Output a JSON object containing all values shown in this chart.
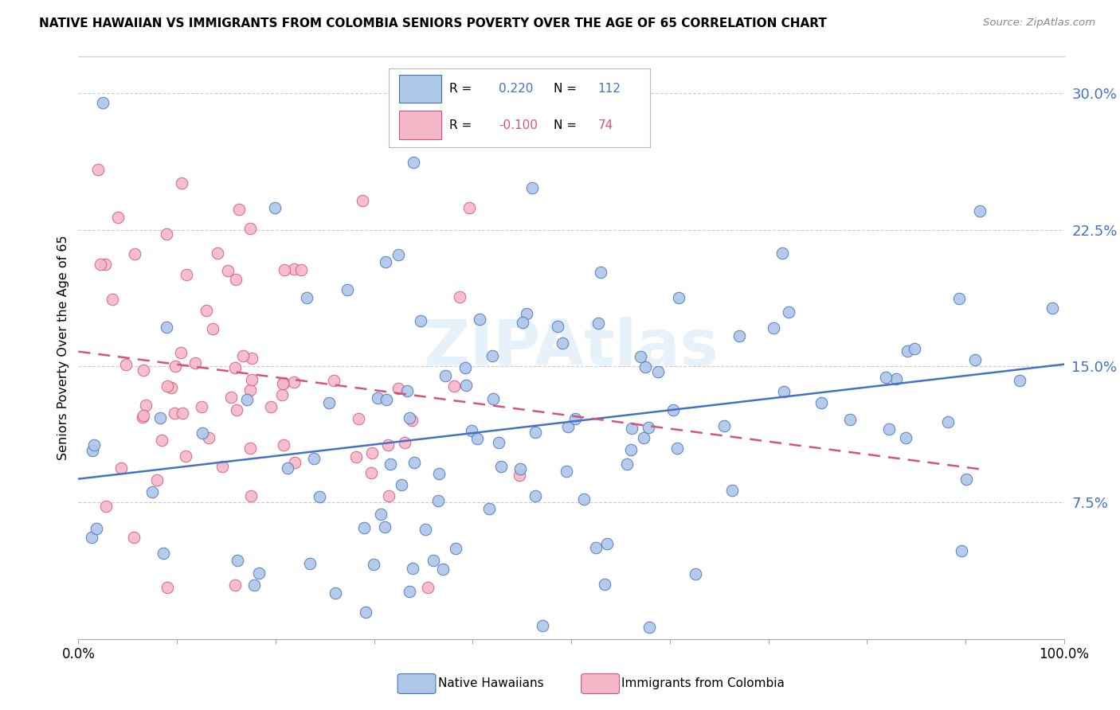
{
  "title": "NATIVE HAWAIIAN VS IMMIGRANTS FROM COLOMBIA SENIORS POVERTY OVER THE AGE OF 65 CORRELATION CHART",
  "source": "Source: ZipAtlas.com",
  "ylabel": "Seniors Poverty Over the Age of 65",
  "xlim": [
    0.0,
    1.0
  ],
  "ylim": [
    0.0,
    0.32
  ],
  "legend_blue_r": "0.220",
  "legend_blue_n": "112",
  "legend_pink_r": "-0.100",
  "legend_pink_n": "74",
  "blue_color": "#aec6e8",
  "blue_edge_color": "#4472c4",
  "pink_color": "#f5b8c8",
  "pink_edge_color": "#d4547a",
  "blue_line_color": "#4472c4",
  "pink_line_color": "#d4547a",
  "watermark": "ZIPAtlas",
  "yticks": [
    0.075,
    0.15,
    0.225,
    0.3
  ],
  "ytick_labels": [
    "7.5%",
    "15.0%",
    "22.5%",
    "30.0%"
  ],
  "blue_trend_x0": 0.0,
  "blue_trend_y0": 0.088,
  "blue_trend_x1": 1.0,
  "blue_trend_y1": 0.151,
  "pink_trend_x0": 0.0,
  "pink_trend_y0": 0.158,
  "pink_trend_x1": 0.92,
  "pink_trend_y1": 0.093
}
